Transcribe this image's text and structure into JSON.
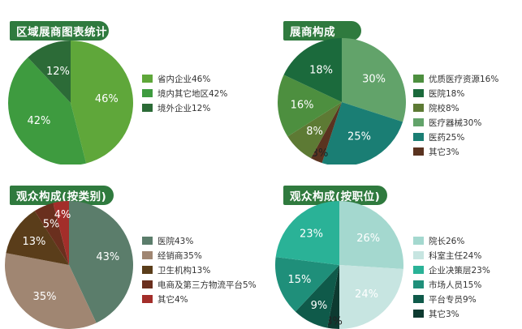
{
  "chart_data": [
    {
      "type": "pie",
      "title": "区域展商图表统计",
      "categories": [
        "省内企业46%",
        "境内其它地区42%",
        "境外企业12%"
      ],
      "values": [
        46,
        42,
        12
      ],
      "colors": [
        "#5fa73a",
        "#3e9b3f",
        "#2c6b37"
      ],
      "slice_labels": [
        "46%",
        "42%",
        "12%"
      ],
      "start_angle": 90,
      "direction": "clockwise",
      "legend_position": "right"
    },
    {
      "type": "pie",
      "title": "展商构成",
      "categories": [
        "优质医疗资源16%",
        "医院18%",
        "院校8%",
        "医疗器械30%",
        "医药25%",
        "其它3%"
      ],
      "values": [
        16,
        18,
        8,
        30,
        25,
        3
      ],
      "colors": [
        "#4d8f3f",
        "#1b6a3c",
        "#5d7a34",
        "#62a36a",
        "#1a7e74",
        "#5a3320"
      ],
      "slice_labels": [
        "16%",
        "18%",
        "8%",
        "30%",
        "25%",
        "3%"
      ],
      "slice_order": [
        3,
        4,
        5,
        2,
        0,
        1
      ],
      "start_angle": 90,
      "direction": "clockwise",
      "legend_position": "right"
    },
    {
      "type": "pie",
      "title": "观众构成(按类别)",
      "categories": [
        "医院43%",
        "经销商35%",
        "卫生机构13%",
        "电商及第三方物流平台5%",
        "其它4%"
      ],
      "values": [
        43,
        35,
        13,
        5,
        4
      ],
      "colors": [
        "#5b7d6b",
        "#a08672",
        "#5a3d1a",
        "#6a2f1e",
        "#a32e2a"
      ],
      "slice_labels": [
        "43%",
        "35%",
        "13%",
        "5%",
        "4%"
      ],
      "start_angle": 90,
      "direction": "clockwise",
      "legend_position": "right"
    },
    {
      "type": "pie",
      "title": "观众构成(按职位)",
      "categories": [
        "院长26%",
        "科室主任24%",
        "企业决策层23%",
        "市场人员15%",
        "平台专员9%",
        "其它3%"
      ],
      "values": [
        26,
        24,
        23,
        15,
        9,
        3
      ],
      "colors": [
        "#a4d8cf",
        "#c7e5e1",
        "#2ab297",
        "#1f8f7a",
        "#0f5a4a",
        "#0d3a30"
      ],
      "slice_labels": [
        "26%",
        "24%",
        "23%",
        "15%",
        "9%",
        "3%"
      ],
      "slice_order": [
        0,
        1,
        5,
        4,
        3,
        2
      ],
      "start_angle": 90,
      "direction": "clockwise",
      "legend_position": "right"
    }
  ]
}
